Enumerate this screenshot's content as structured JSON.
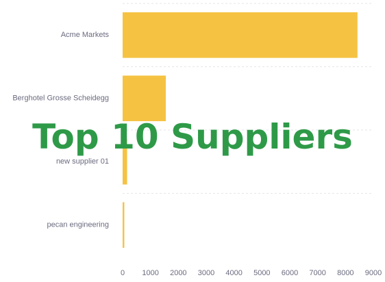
{
  "overlay": {
    "title": "Top 10 Suppliers",
    "color": "#2e9a48"
  },
  "chart_data": {
    "type": "bar",
    "orientation": "horizontal",
    "categories": [
      "Acme Markets",
      "Berghotel Grosse Scheidegg",
      "new supplier 01",
      "pecan engineering"
    ],
    "values": [
      8430,
      1550,
      160,
      60
    ],
    "xlim": [
      0,
      9000
    ],
    "xticks": [
      0,
      1000,
      2000,
      3000,
      4000,
      5000,
      6000,
      7000,
      8000,
      9000
    ],
    "grid": true,
    "bar_color": "#f5c242",
    "label_color": "#6b6b80",
    "grid_color": "#e6e6ea"
  }
}
